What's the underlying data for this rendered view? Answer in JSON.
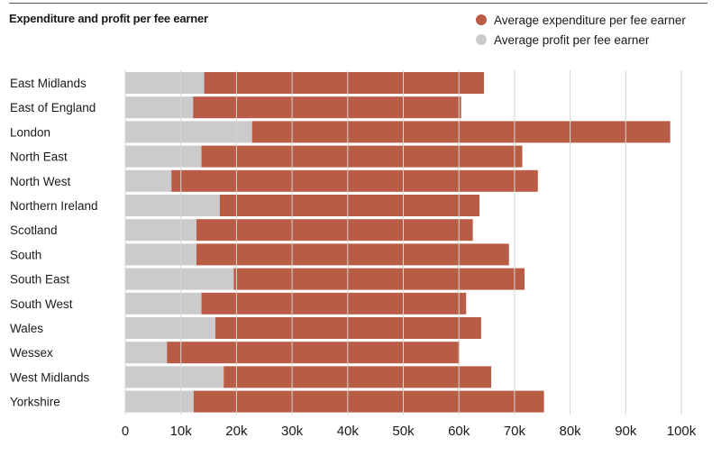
{
  "chart_data": {
    "type": "bar",
    "orientation": "horizontal",
    "stacked": true,
    "title": "Expenditure and profit per fee earner",
    "categories": [
      "East Midlands",
      "East of England",
      "London",
      "North East",
      "North West",
      "Northern Ireland",
      "Scotland",
      "South",
      "South East",
      "South West",
      "Wales",
      "Wessex",
      "West Midlands",
      "Yorkshire"
    ],
    "series": [
      {
        "name": "Average profit per fee earner",
        "color": "#cbcbcb",
        "values": [
          14200,
          12200,
          22800,
          13700,
          8300,
          17000,
          12800,
          12800,
          19500,
          13700,
          16200,
          7500,
          17700,
          12300
        ]
      },
      {
        "name": "Average expenditure per fee earner",
        "color": "#b85c45",
        "values": [
          50300,
          48200,
          75200,
          57700,
          65900,
          46700,
          49700,
          56200,
          52300,
          47600,
          47800,
          52600,
          48100,
          63000
        ]
      }
    ],
    "xlim": [
      0,
      100000
    ],
    "ticks": [
      0,
      10000,
      20000,
      30000,
      40000,
      50000,
      60000,
      70000,
      80000,
      90000,
      100000
    ],
    "tick_labels": [
      "0",
      "10k",
      "20k",
      "30k",
      "40k",
      "50k",
      "60k",
      "70k",
      "80k",
      "90k",
      "100k"
    ],
    "legend_order": [
      1,
      0
    ],
    "legend_position": "top-right",
    "grid": true
  }
}
